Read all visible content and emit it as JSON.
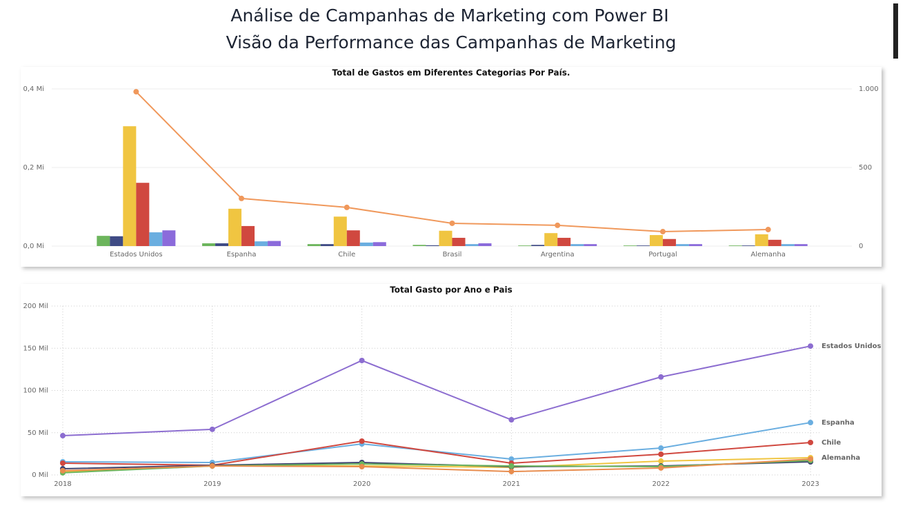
{
  "header": {
    "title": "Análise de Campanhas de Marketing com Power BI",
    "subtitle": "Visão da Performance das Campanhas de Marketing"
  },
  "chart_data": [
    {
      "type": "bar",
      "title": "Total de Gastos em Diferentes Categorias Por País.",
      "categories": [
        "Estados Unidos",
        "Espanha",
        "Chile",
        "Brasil",
        "Argentina",
        "Portugal",
        "Alemanha"
      ],
      "series": [
        {
          "color": "#6cb55c",
          "values": [
            26000,
            7000,
            5000,
            3000,
            1500,
            1500,
            1500
          ]
        },
        {
          "color": "#3f4b85",
          "values": [
            25000,
            7000,
            5000,
            2000,
            3000,
            1500,
            1500
          ]
        },
        {
          "color": "#f0c541",
          "values": [
            305000,
            95000,
            75000,
            39000,
            33000,
            28000,
            30000
          ]
        },
        {
          "color": "#d0483f",
          "values": [
            161000,
            51000,
            40000,
            21000,
            21000,
            18000,
            16000
          ]
        },
        {
          "color": "#6aaee0",
          "values": [
            35000,
            12000,
            9000,
            5000,
            5000,
            5000,
            5000
          ]
        },
        {
          "color": "#8b6bdb",
          "values": [
            40000,
            13000,
            10000,
            7000,
            5000,
            5000,
            5000
          ]
        },
        {
          "type": "line",
          "axis": "y2",
          "color": "#f0985b",
          "values": [
            982,
            303,
            246,
            145,
            132,
            92,
            105
          ]
        }
      ],
      "ylim": [
        0,
        400000
      ],
      "yticks": [
        {
          "value": 0,
          "label": "0,0 Mi"
        },
        {
          "value": 200000,
          "label": "0,2 Mi"
        },
        {
          "value": 400000,
          "label": "0,4 Mi"
        }
      ],
      "y2lim": [
        0,
        1000
      ],
      "y2ticks": [
        0,
        500,
        {
          "value": 1000,
          "label": "1.000"
        }
      ],
      "grid": true
    },
    {
      "type": "line",
      "title": "Total Gasto por Ano e Pais",
      "categories": [
        "2018",
        "2019",
        "2020",
        "2021",
        "2022",
        "2023"
      ],
      "series": [
        {
          "name": "Estados Unidos",
          "color": "#8c6dd0",
          "values": [
            46500,
            54000,
            135500,
            65300,
            116000,
            152600
          ]
        },
        {
          "name": "Espanha",
          "color": "#6aaee0",
          "values": [
            15500,
            14700,
            36700,
            18800,
            31800,
            62000
          ]
        },
        {
          "name": "Chile",
          "color": "#d0483f",
          "values": [
            13900,
            11400,
            40000,
            13900,
            24500,
            38400
          ]
        },
        {
          "name": "Alemanha",
          "color": "#f0c541",
          "values": [
            4000,
            10600,
            10600,
            9000,
            16300,
            20400
          ]
        },
        {
          "color": "#3f4470",
          "values": [
            7300,
            11400,
            14700,
            9800,
            10600,
            15500
          ]
        },
        {
          "color": "#6cb55c",
          "values": [
            2500,
            10600,
            13000,
            10600,
            9800,
            17100
          ]
        },
        {
          "color": "#e88d4f",
          "values": [
            5000,
            10600,
            9800,
            4000,
            8200,
            18800
          ]
        }
      ],
      "ylim": [
        0,
        200000
      ],
      "yticks": [
        {
          "value": 0,
          "label": "0 Mil"
        },
        {
          "value": 50000,
          "label": "50 Mil"
        },
        {
          "value": 100000,
          "label": "100 Mil"
        },
        {
          "value": 150000,
          "label": "150 Mil"
        },
        {
          "value": 200000,
          "label": "200 Mil"
        }
      ],
      "grid": true
    }
  ]
}
